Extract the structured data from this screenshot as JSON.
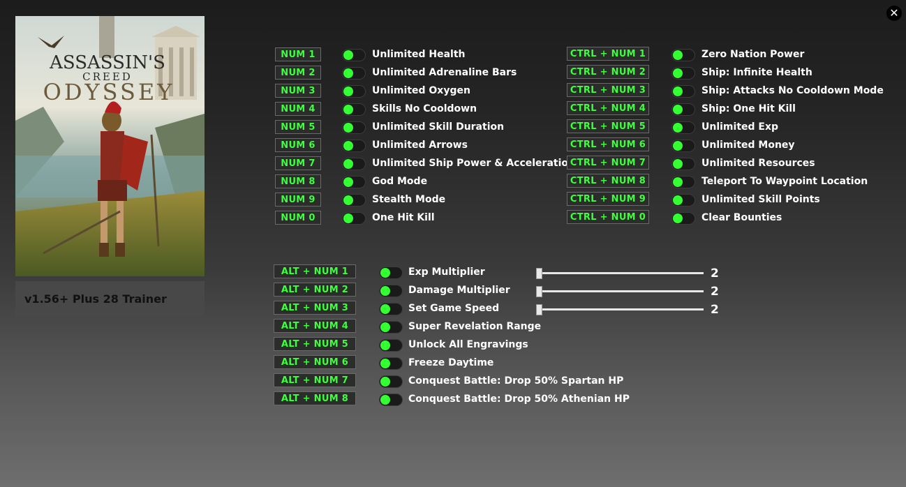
{
  "window": {
    "close_icon": "close-icon"
  },
  "cover": {
    "title_line1": "ASSASSIN'S",
    "title_line2": "CREED",
    "title_line3": "ODYSSEY"
  },
  "version_label": "v1.56+ Plus 28 Trainer",
  "colors": {
    "key_text": "#3dff3d",
    "toggle_knob": "#33ff33",
    "background_top": "#1c1c1c"
  },
  "col1": [
    {
      "key": "NUM 1",
      "label": "Unlimited Health"
    },
    {
      "key": "NUM 2",
      "label": "Unlimited  Adrenaline Bars"
    },
    {
      "key": "NUM 3",
      "label": "Unlimited  Oxygen"
    },
    {
      "key": "NUM 4",
      "label": "Skills No Cooldown"
    },
    {
      "key": "NUM 5",
      "label": "Unlimited Skill Duration"
    },
    {
      "key": "NUM 6",
      "label": "Unlimited Arrows"
    },
    {
      "key": "NUM 7",
      "label": "Unlimited Ship Power & Acceleration"
    },
    {
      "key": "NUM 8",
      "label": "God Mode"
    },
    {
      "key": "NUM 9",
      "label": "Stealth Mode"
    },
    {
      "key": "NUM 0",
      "label": "One Hit Kill"
    }
  ],
  "col2": [
    {
      "key": "CTRL + NUM 1",
      "label": "Zero Nation Power"
    },
    {
      "key": "CTRL + NUM 2",
      "label": "Ship: Infinite Health"
    },
    {
      "key": "CTRL + NUM 3",
      "label": "Ship: Attacks No Cooldown Mode"
    },
    {
      "key": "CTRL + NUM 4",
      "label": "Ship: One Hit Kill"
    },
    {
      "key": "CTRL + NUM 5",
      "label": "Unlimited Exp"
    },
    {
      "key": "CTRL + NUM 6",
      "label": "Unlimited Money"
    },
    {
      "key": "CTRL + NUM 7",
      "label": "Unlimited Resources"
    },
    {
      "key": "CTRL + NUM 8",
      "label": "Teleport To Waypoint Location"
    },
    {
      "key": "CTRL + NUM 9",
      "label": "Unlimited Skill Points"
    },
    {
      "key": "CTRL + NUM 0",
      "label": "Clear Bounties"
    }
  ],
  "col3": [
    {
      "key": "ALT + NUM 1",
      "label": "Exp Multiplier",
      "value": "2"
    },
    {
      "key": "ALT + NUM 2",
      "label": "Damage Multiplier",
      "value": "2"
    },
    {
      "key": "ALT + NUM 3",
      "label": "Set Game Speed",
      "value": "2"
    },
    {
      "key": "ALT + NUM 4",
      "label": "Super Revelation Range"
    },
    {
      "key": "ALT + NUM 5",
      "label": "Unlock All Engravings"
    },
    {
      "key": "ALT + NUM 6",
      "label": "Freeze Daytime"
    },
    {
      "key": "ALT + NUM 7",
      "label": "Conquest Battle: Drop 50% Spartan HP"
    },
    {
      "key": "ALT + NUM 8",
      "label": "Conquest Battle: Drop 50% Athenian HP"
    }
  ]
}
